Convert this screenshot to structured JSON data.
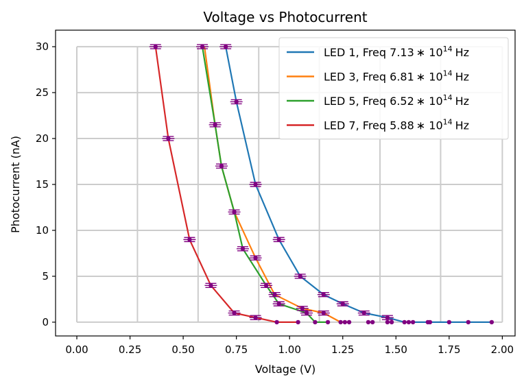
{
  "chart_data": {
    "type": "line",
    "title": "Voltage vs Photocurrent",
    "xlabel": "Voltage (V)",
    "ylabel": "Photocurrent (nA)",
    "xlim": [
      -0.1,
      2.06
    ],
    "ylim": [
      -1.5,
      31.8
    ],
    "xticks": [
      0.0,
      0.25,
      0.5,
      0.75,
      1.0,
      1.25,
      1.5,
      1.75,
      2.0
    ],
    "xtick_labels": [
      "0.00",
      "0.25",
      "0.50",
      "0.75",
      "1.00",
      "1.25",
      "1.50",
      "1.75",
      "2.00"
    ],
    "yticks": [
      0,
      5,
      10,
      15,
      20,
      25,
      30
    ],
    "ytick_labels": [
      "0",
      "5",
      "10",
      "15",
      "20",
      "25",
      "30"
    ],
    "grid_x": [
      0.0,
      0.285,
      0.57,
      0.855,
      1.14,
      1.425,
      1.71,
      2.0
    ],
    "grid_y": [
      0,
      5,
      10,
      15,
      20,
      25,
      30
    ],
    "grid": true,
    "legend_position": "top-right",
    "marker_color": "#800080",
    "series": [
      {
        "name": "LED 1, Freq 7.13*10^14 Hz",
        "label_main": "LED 1, Freq 7.13",
        "label_exp": "14",
        "color": "#1f77b4",
        "x": [
          0.7,
          0.75,
          0.84,
          0.95,
          1.05,
          1.16,
          1.25,
          1.35,
          1.46,
          1.54,
          1.56,
          1.58,
          1.65,
          1.66,
          1.75,
          1.84,
          1.95
        ],
        "y": [
          30,
          24,
          15,
          9,
          5,
          3,
          2,
          1,
          0.5,
          0,
          0,
          0,
          0,
          0,
          0,
          0,
          0
        ]
      },
      {
        "name": "LED 3, Freq 6.81*10^14 Hz",
        "label_main": "LED 3, Freq 6.81",
        "label_exp": "14",
        "color": "#ff7f0e",
        "x": [
          0.6,
          0.65,
          0.68,
          0.74,
          0.84,
          0.93,
          1.06,
          1.16,
          1.24,
          1.26,
          1.28
        ],
        "y": [
          30,
          21.5,
          17,
          12,
          7,
          3,
          1.5,
          1,
          0,
          0,
          0
        ]
      },
      {
        "name": "LED 5, Freq 6.52*10^14 Hz",
        "label_main": "LED 5, Freq 6.52",
        "label_exp": "14",
        "color": "#2ca02c",
        "x": [
          0.59,
          0.65,
          0.68,
          0.74,
          0.78,
          0.89,
          0.95,
          1.08,
          1.12,
          1.18
        ],
        "y": [
          30,
          21.5,
          17,
          12,
          8,
          4,
          2,
          1,
          0,
          0
        ]
      },
      {
        "name": "LED 7, Freq 5.88*10^14 Hz",
        "label_main": "LED 7, Freq 5.88",
        "label_exp": "14",
        "color": "#d62728",
        "x": [
          0.37,
          0.43,
          0.53,
          0.63,
          0.74,
          0.84,
          0.94,
          1.04
        ],
        "y": [
          30,
          20,
          9,
          4,
          1,
          0.5,
          0,
          0
        ]
      }
    ],
    "error_markers": {
      "x": [
        0.37,
        0.59,
        0.7,
        0.43,
        0.75,
        0.65,
        0.68,
        0.84,
        0.74,
        0.53,
        0.95,
        0.78,
        0.84,
        0.89,
        1.05,
        0.63,
        0.93,
        1.16,
        0.95,
        1.25,
        1.06,
        1.16,
        1.08,
        1.35,
        0.74,
        1.46,
        0.84
      ],
      "y": [
        30,
        30,
        30,
        20,
        24,
        21.5,
        17,
        15,
        12,
        9,
        9,
        8,
        7,
        4,
        5,
        4,
        3,
        3,
        2,
        2,
        1.5,
        1,
        1,
        1,
        1,
        0.5,
        0.5
      ]
    },
    "zero_points": {
      "x": [
        0.94,
        1.04,
        1.12,
        1.18,
        1.24,
        1.26,
        1.28,
        1.37,
        1.39,
        1.46,
        1.48,
        1.54,
        1.56,
        1.58,
        1.65,
        1.66,
        1.75,
        1.84,
        1.95
      ],
      "y": [
        0,
        0,
        0,
        0,
        0,
        0,
        0,
        0,
        0,
        0,
        0,
        0,
        0,
        0,
        0,
        0,
        0,
        0,
        0
      ]
    }
  }
}
